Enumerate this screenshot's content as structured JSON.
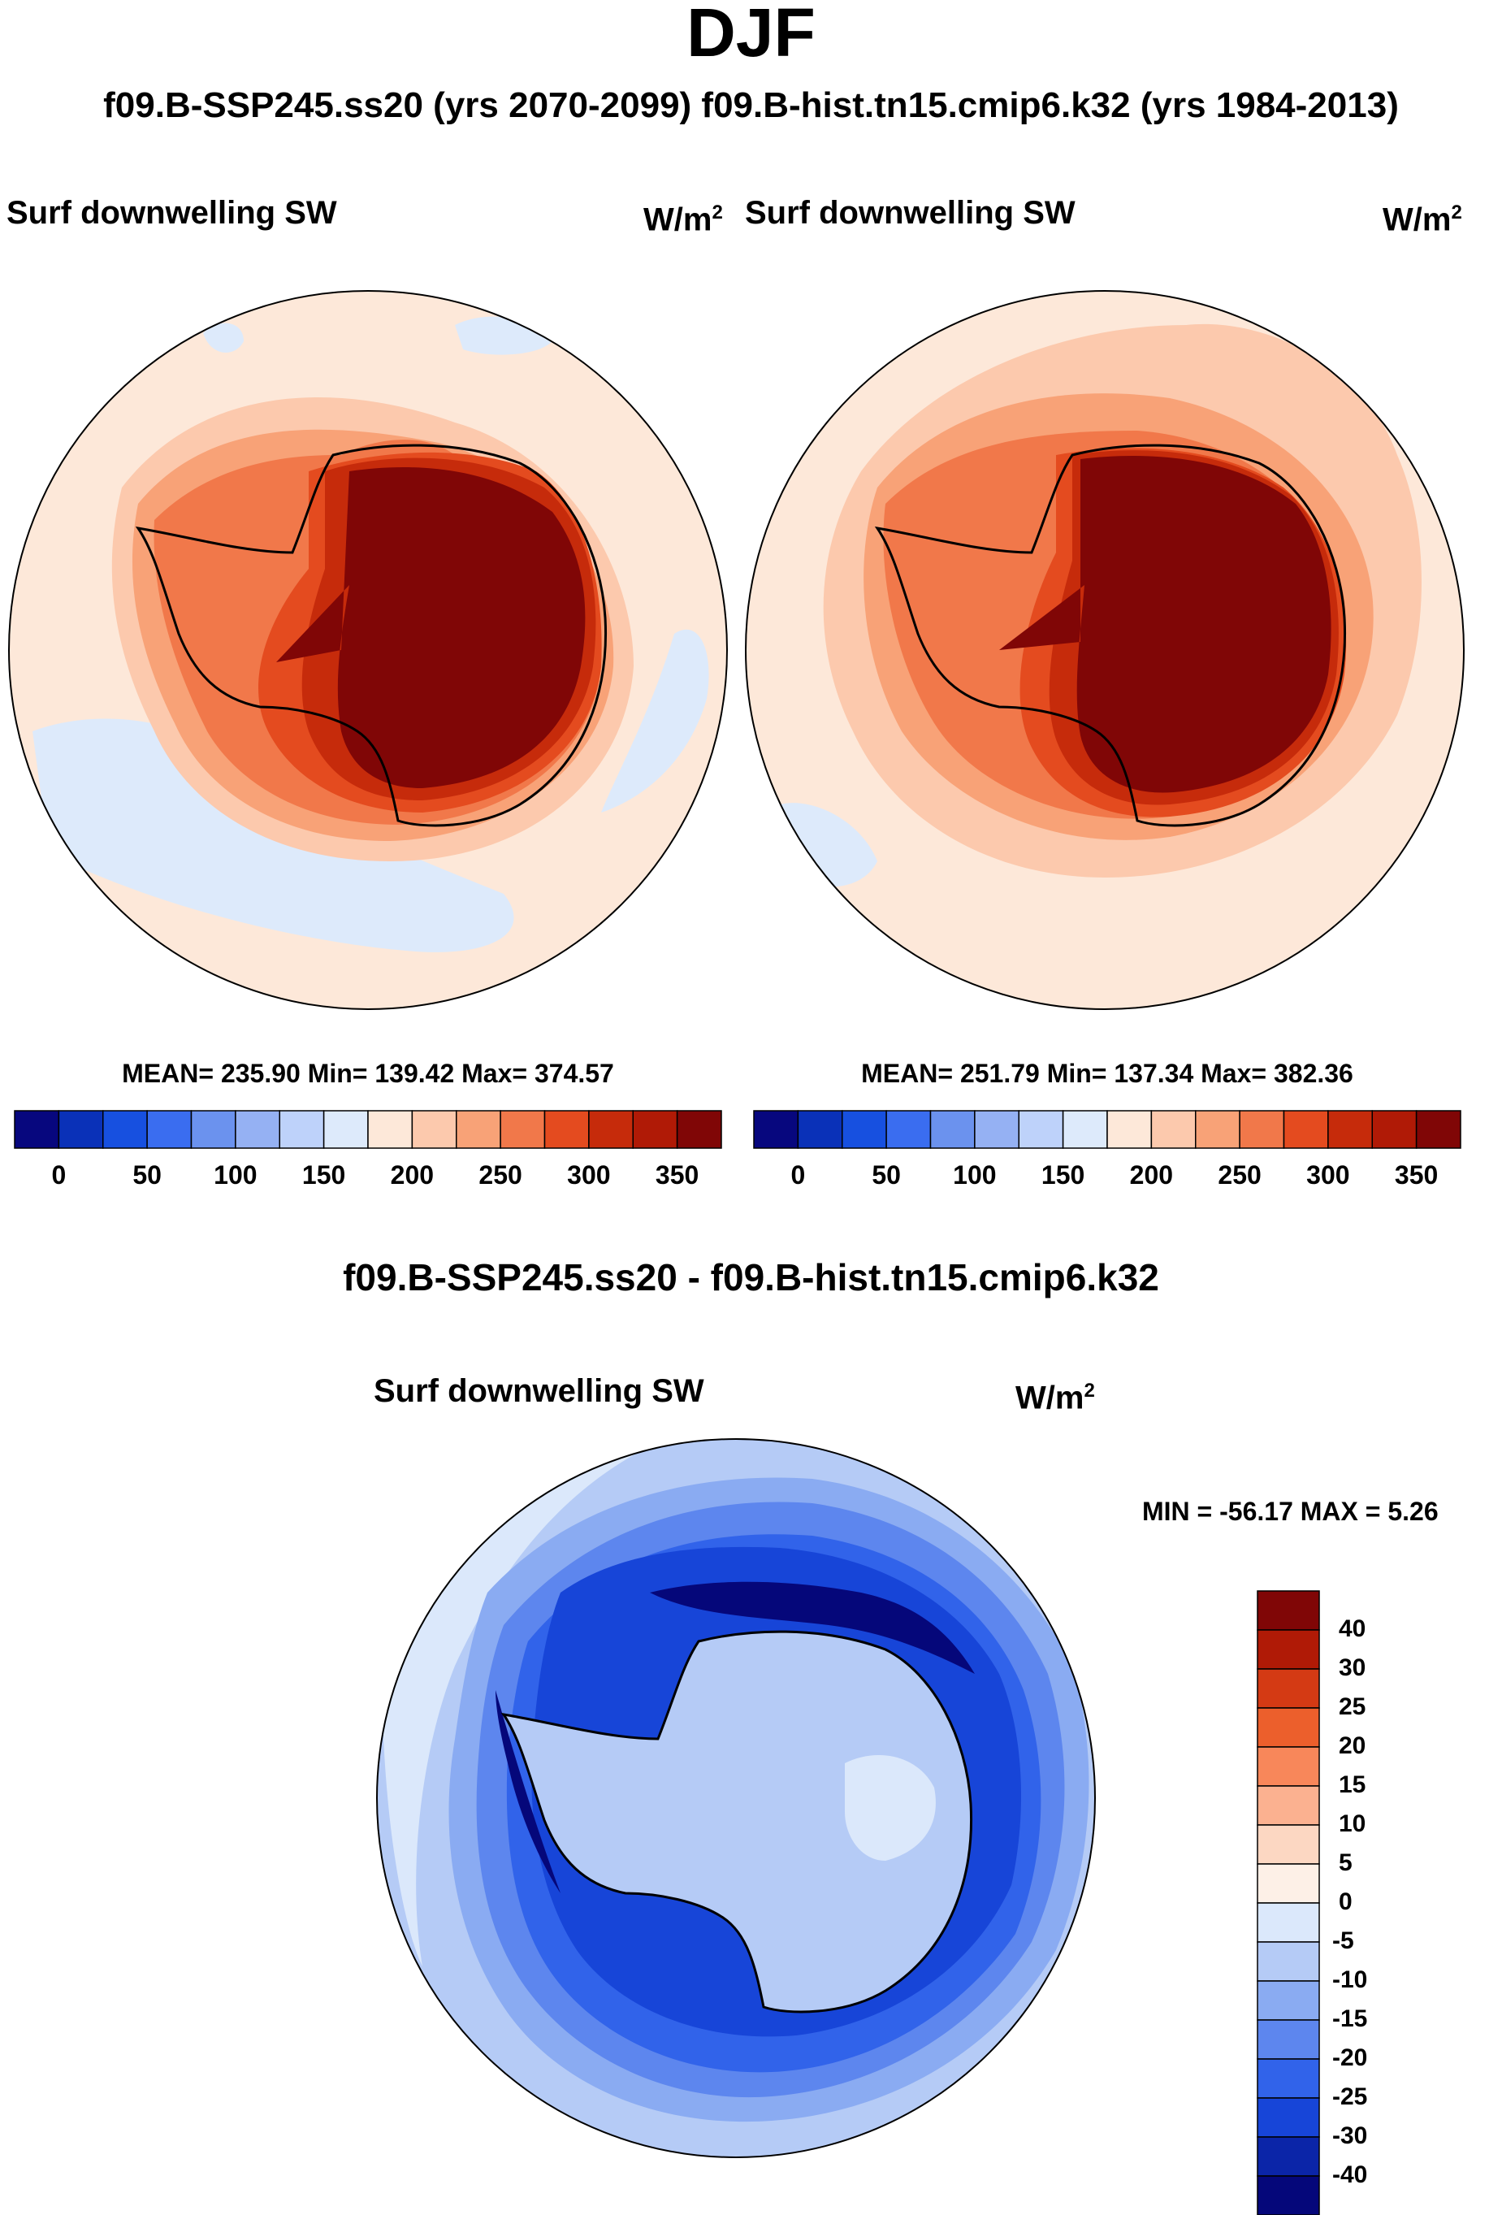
{
  "season": "DJF",
  "runs_line": "f09.B-SSP245.ss20 (yrs 2070-2099)  f09.B-hist.tn15.cmip6.k32 (yrs 1984-2013)",
  "panels": [
    {
      "title": "Surf downwelling SW",
      "units": "W/m",
      "units_sup": "2",
      "stats": "MEAN= 235.90  Min= 139.42  Max= 374.57",
      "mean": 235.9,
      "min": 139.42,
      "max": 374.57,
      "colorbar": {
        "ticks": [
          "0",
          "50",
          "100",
          "150",
          "200",
          "250",
          "300",
          "350"
        ],
        "colors": [
          "#07077e",
          "#0a31b8",
          "#1750e0",
          "#3a6df0",
          "#6b92ee",
          "#95b1f3",
          "#bed2fa",
          "#ddeafb",
          "#fde8d9",
          "#fcc9ad",
          "#f8a277",
          "#f1784a",
          "#e44b1f",
          "#c62b0b",
          "#b01a06",
          "#800606"
        ]
      }
    },
    {
      "title": "Surf downwelling SW",
      "units": "W/m",
      "units_sup": "2",
      "stats": "MEAN= 251.79  Min= 137.34  Max= 382.36",
      "mean": 251.79,
      "min": 137.34,
      "max": 382.36,
      "colorbar": {
        "ticks": [
          "0",
          "50",
          "100",
          "150",
          "200",
          "250",
          "300",
          "350"
        ],
        "colors": [
          "#07077e",
          "#0a31b8",
          "#1750e0",
          "#3a6df0",
          "#6b92ee",
          "#95b1f3",
          "#bed2fa",
          "#ddeafb",
          "#fde8d9",
          "#fcc9ad",
          "#f8a277",
          "#f1784a",
          "#e44b1f",
          "#c62b0b",
          "#b01a06",
          "#800606"
        ]
      }
    }
  ],
  "difference": {
    "heading": "f09.B-SSP245.ss20 - f09.B-hist.tn15.cmip6.k32",
    "title": "Surf downwelling SW",
    "units": "W/m",
    "units_sup": "2",
    "minmax_text": "MIN = -56.17 MAX =   5.26",
    "min": -56.17,
    "max": 5.26,
    "colorbar": {
      "labels": [
        "40",
        "30",
        "25",
        "20",
        "15",
        "10",
        "5",
        "0",
        "-5",
        "-10",
        "-15",
        "-20",
        "-25",
        "-30",
        "-40"
      ],
      "colors": [
        "#800606",
        "#b01a06",
        "#d43a14",
        "#ec5f2c",
        "#f8875a",
        "#fbb190",
        "#fcd7c2",
        "#fdf0e7",
        "#dbe8fb",
        "#b5cbf6",
        "#8aabf2",
        "#5d86ee",
        "#3163ea",
        "#1745d8",
        "#0b25a8",
        "#05077a"
      ]
    }
  },
  "chart_data": {
    "type": "heatmap",
    "title": "DJF",
    "subtitle": "f09.B-SSP245.ss20 (yrs 2070-2099)  f09.B-hist.tn15.cmip6.k32 (yrs 1984-2013)",
    "variable": "Surf downwelling SW",
    "units": "W/m2",
    "projection": "south polar stereographic",
    "panels": [
      {
        "name": "f09.B-SSP245.ss20 (yrs 2070-2099)",
        "mean": 235.9,
        "min": 139.42,
        "max": 374.57,
        "levels": [
          0,
          25,
          50,
          75,
          100,
          125,
          150,
          175,
          200,
          225,
          250,
          275,
          300,
          325,
          350
        ]
      },
      {
        "name": "f09.B-hist.tn15.cmip6.k32 (yrs 1984-2013)",
        "mean": 251.79,
        "min": 137.34,
        "max": 382.36,
        "levels": [
          0,
          25,
          50,
          75,
          100,
          125,
          150,
          175,
          200,
          225,
          250,
          275,
          300,
          325,
          350
        ]
      },
      {
        "name": "f09.B-SSP245.ss20 - f09.B-hist.tn15.cmip6.k32",
        "min": -56.17,
        "max": 5.26,
        "levels": [
          -40,
          -30,
          -25,
          -20,
          -15,
          -10,
          -5,
          0,
          5,
          10,
          15,
          20,
          25,
          30,
          40
        ]
      }
    ]
  }
}
